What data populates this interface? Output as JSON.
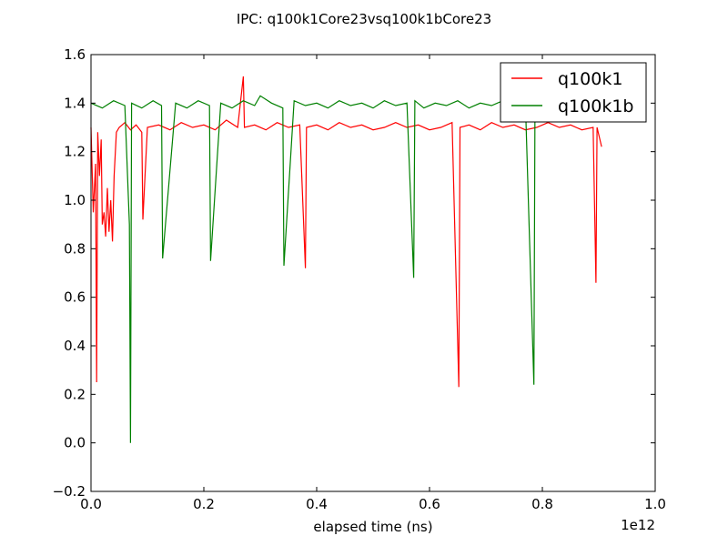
{
  "chart_data": {
    "type": "line",
    "title": "IPC: q100k1Core23vsq100k1bCore23",
    "xlabel": "elapsed time (ns)",
    "ylabel": "",
    "x_offset_label": "1e12",
    "xlim": [
      0,
      1.0
    ],
    "ylim": [
      -0.2,
      1.6
    ],
    "x_ticks": [
      0.0,
      0.2,
      0.4,
      0.6,
      0.8,
      1.0
    ],
    "x_tick_labels": [
      "0.0",
      "0.2",
      "0.4",
      "0.6",
      "0.8",
      "1.0"
    ],
    "y_ticks": [
      -0.2,
      0.0,
      0.2,
      0.4,
      0.6,
      0.8,
      1.0,
      1.2,
      1.4,
      1.6
    ],
    "y_tick_labels": [
      "−0.2",
      "0.0",
      "0.2",
      "0.4",
      "0.6",
      "0.8",
      "1.0",
      "1.2",
      "1.4",
      "1.6"
    ],
    "grid": false,
    "legend_position": "top-right",
    "series": [
      {
        "name": "q100k1",
        "color": "#ff0000",
        "x": [
          0.0,
          0.004,
          0.008,
          0.01,
          0.012,
          0.015,
          0.018,
          0.02,
          0.023,
          0.026,
          0.029,
          0.032,
          0.035,
          0.038,
          0.041,
          0.045,
          0.05,
          0.06,
          0.07,
          0.08,
          0.09,
          0.092,
          0.1,
          0.12,
          0.14,
          0.16,
          0.18,
          0.2,
          0.22,
          0.24,
          0.26,
          0.27,
          0.272,
          0.29,
          0.31,
          0.33,
          0.35,
          0.37,
          0.38,
          0.382,
          0.4,
          0.42,
          0.44,
          0.46,
          0.48,
          0.5,
          0.52,
          0.54,
          0.56,
          0.58,
          0.6,
          0.62,
          0.64,
          0.652,
          0.654,
          0.67,
          0.69,
          0.71,
          0.73,
          0.75,
          0.77,
          0.79,
          0.81,
          0.83,
          0.85,
          0.87,
          0.89,
          0.895,
          0.897,
          0.905
        ],
        "y": [
          1.3,
          0.95,
          1.15,
          0.25,
          1.28,
          1.1,
          1.25,
          0.9,
          0.95,
          0.85,
          1.05,
          0.87,
          1.0,
          0.83,
          1.1,
          1.28,
          1.3,
          1.32,
          1.29,
          1.31,
          1.28,
          0.92,
          1.3,
          1.31,
          1.29,
          1.32,
          1.3,
          1.31,
          1.29,
          1.33,
          1.3,
          1.51,
          1.3,
          1.31,
          1.29,
          1.32,
          1.3,
          1.31,
          0.72,
          1.3,
          1.31,
          1.29,
          1.32,
          1.3,
          1.31,
          1.29,
          1.3,
          1.32,
          1.3,
          1.31,
          1.29,
          1.3,
          1.32,
          0.23,
          1.3,
          1.31,
          1.29,
          1.32,
          1.3,
          1.31,
          1.29,
          1.3,
          1.32,
          1.3,
          1.31,
          1.29,
          1.3,
          0.66,
          1.3,
          1.22
        ]
      },
      {
        "name": "q100k1b",
        "color": "#008000",
        "x": [
          0.0,
          0.02,
          0.04,
          0.06,
          0.068,
          0.07,
          0.072,
          0.09,
          0.11,
          0.125,
          0.127,
          0.15,
          0.17,
          0.19,
          0.21,
          0.212,
          0.23,
          0.25,
          0.27,
          0.29,
          0.3,
          0.32,
          0.34,
          0.342,
          0.36,
          0.38,
          0.4,
          0.42,
          0.44,
          0.46,
          0.48,
          0.5,
          0.52,
          0.54,
          0.56,
          0.572,
          0.574,
          0.59,
          0.61,
          0.63,
          0.65,
          0.67,
          0.69,
          0.71,
          0.73,
          0.75,
          0.77,
          0.785,
          0.787,
          0.8,
          0.82,
          0.84,
          0.86,
          0.88,
          0.9,
          0.905
        ],
        "y": [
          1.4,
          1.38,
          1.41,
          1.39,
          0.9,
          0.0,
          1.4,
          1.38,
          1.41,
          1.39,
          0.76,
          1.4,
          1.38,
          1.41,
          1.39,
          0.75,
          1.4,
          1.38,
          1.41,
          1.39,
          1.43,
          1.4,
          1.38,
          0.73,
          1.41,
          1.39,
          1.4,
          1.38,
          1.41,
          1.39,
          1.4,
          1.38,
          1.41,
          1.39,
          1.4,
          0.68,
          1.41,
          1.38,
          1.4,
          1.39,
          1.41,
          1.38,
          1.4,
          1.39,
          1.41,
          1.38,
          1.4,
          0.24,
          1.39,
          1.41,
          1.38,
          1.4,
          1.39,
          1.41,
          1.38,
          1.4
        ]
      }
    ]
  }
}
